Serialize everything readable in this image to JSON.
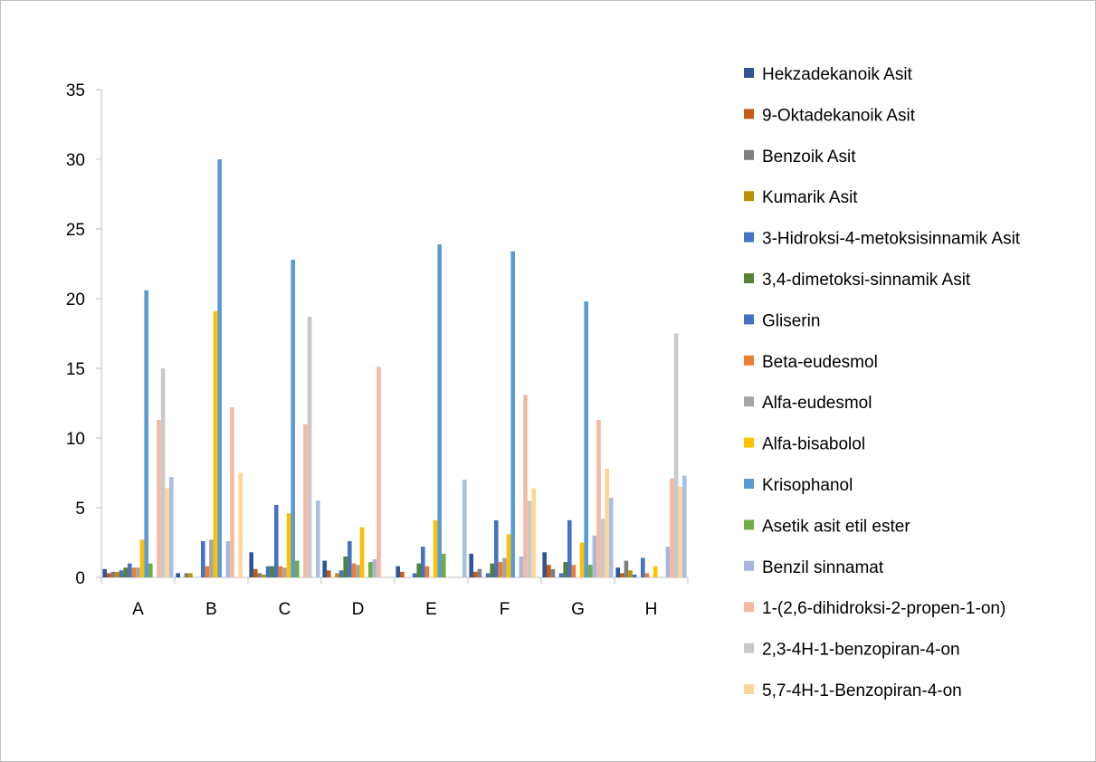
{
  "chart_data": {
    "type": "bar",
    "title": "",
    "xlabel": "",
    "ylabel": "",
    "ylim": [
      0,
      35
    ],
    "yticks": [
      0,
      5,
      10,
      15,
      20,
      25,
      30,
      35
    ],
    "grid": false,
    "legend_position": "right",
    "categories": [
      "A",
      "B",
      "C",
      "D",
      "E",
      "F",
      "G",
      "H"
    ],
    "series": [
      {
        "name": "Hekzadekanoik Asit",
        "color": "#2F5597",
        "values": [
          0.6,
          0.3,
          1.8,
          1.2,
          0.8,
          1.7,
          1.8,
          0.7
        ]
      },
      {
        "name": "9-Oktadekanoik Asit",
        "color": "#C55A11",
        "values": [
          0.3,
          0,
          0.6,
          0.5,
          0.4,
          0.4,
          0.9,
          0.3
        ]
      },
      {
        "name": "Benzoik Asit",
        "color": "#7F7F7F",
        "values": [
          0.4,
          0.3,
          0.3,
          0,
          0,
          0.6,
          0.6,
          1.2
        ]
      },
      {
        "name": "Kumarik Asit",
        "color": "#BF9000",
        "values": [
          0.4,
          0.3,
          0.2,
          0.3,
          0,
          0,
          0,
          0.5
        ]
      },
      {
        "name": "3-Hidroksi-4-metoksisinnamik Asit",
        "color": "#4472C4",
        "values": [
          0.5,
          0,
          0.8,
          0.5,
          0.3,
          0.3,
          0.3,
          0.2
        ]
      },
      {
        "name": "3,4-dimetoksi-sinnamik Asit",
        "color": "#548235",
        "values": [
          0.7,
          0,
          0.8,
          1.5,
          1.0,
          1.0,
          1.1,
          0
        ]
      },
      {
        "name": "Gliserin",
        "color": "#4472C4",
        "values": [
          1.0,
          2.6,
          5.2,
          2.6,
          2.2,
          4.1,
          4.1,
          1.4
        ]
      },
      {
        "name": "Beta-eudesmol",
        "color": "#ED7D31",
        "values": [
          0.7,
          0.8,
          0.8,
          1.0,
          0.8,
          1.1,
          0.9,
          0.3
        ]
      },
      {
        "name": "Alfa-eudesmol",
        "color": "#A5A5A5",
        "values": [
          0.7,
          2.7,
          0.7,
          0.9,
          0,
          1.4,
          0,
          0
        ]
      },
      {
        "name": "Alfa-bisabolol",
        "color": "#FFC000",
        "values": [
          2.7,
          19.1,
          4.6,
          3.6,
          4.1,
          3.1,
          2.5,
          0.8
        ]
      },
      {
        "name": "Krisophanol",
        "color": "#5B9BD5",
        "values": [
          20.6,
          30.0,
          22.8,
          0,
          23.9,
          23.4,
          19.8,
          0
        ]
      },
      {
        "name": "Asetik asit etil ester",
        "color": "#70AD47",
        "values": [
          1.0,
          0,
          1.2,
          1.1,
          1.7,
          0,
          0.9,
          0
        ]
      },
      {
        "name": "Benzil sinnamat",
        "color": "#A9B7DC",
        "values": [
          0,
          2.6,
          0,
          1.3,
          0,
          1.5,
          3.0,
          2.2
        ]
      },
      {
        "name": "1-(2,6-dihidroksi-2-propen-1-on)",
        "color": "#F4B9A3",
        "values": [
          11.3,
          12.2,
          11.0,
          15.1,
          0,
          13.1,
          11.3,
          7.1
        ]
      },
      {
        "name": "2,3-4H-1-benzopiran-4-on",
        "color": "#C9C9C9",
        "values": [
          15.0,
          0,
          18.7,
          0,
          0,
          5.5,
          4.2,
          17.5
        ]
      },
      {
        "name": "5,7-4H-1-Benzopiran-4-on",
        "color": "#FFD699",
        "values": [
          6.4,
          7.5,
          0,
          0,
          0,
          6.4,
          7.8,
          6.5
        ]
      },
      {
        "name": "",
        "color": "#A9BFE3",
        "values": [
          7.2,
          0,
          5.5,
          0,
          7.0,
          0,
          5.7,
          7.3
        ]
      }
    ]
  }
}
